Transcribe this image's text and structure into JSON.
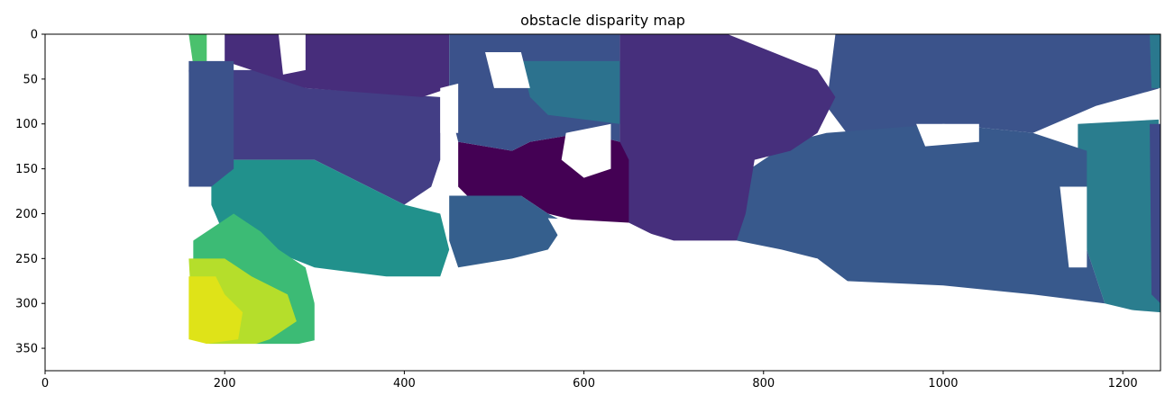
{
  "chart_data": {
    "type": "heatmap",
    "title": "obstacle disparity map",
    "xlabel": "",
    "ylabel": "",
    "xlim": [
      0,
      1242
    ],
    "ylim": [
      375,
      0
    ],
    "x_ticks": [
      0,
      200,
      400,
      600,
      800,
      1000,
      1200
    ],
    "y_ticks": [
      0,
      50,
      100,
      150,
      200,
      250,
      300,
      350
    ],
    "colormap": "viridis",
    "background_color": "#ffffff",
    "grid": false,
    "regions": [
      {
        "name": "far-right-teal",
        "color": "#2a7d8e",
        "points": [
          [
            1150,
            100
          ],
          [
            1242,
            95
          ],
          [
            1242,
            315
          ],
          [
            1180,
            300
          ],
          [
            1160,
            240
          ],
          [
            1150,
            170
          ]
        ]
      },
      {
        "name": "upper-right-blue",
        "color": "#3b538b",
        "points": [
          [
            880,
            0
          ],
          [
            1242,
            0
          ],
          [
            1242,
            60
          ],
          [
            1170,
            80
          ],
          [
            1100,
            110
          ],
          [
            1000,
            100
          ],
          [
            900,
            120
          ],
          [
            870,
            80
          ]
        ]
      },
      {
        "name": "right-mid-blue",
        "color": "#38598c",
        "points": [
          [
            870,
            110
          ],
          [
            1000,
            100
          ],
          [
            1100,
            110
          ],
          [
            1160,
            130
          ],
          [
            1160,
            240
          ],
          [
            1180,
            300
          ],
          [
            1100,
            290
          ],
          [
            1000,
            280
          ],
          [
            890,
            275
          ],
          [
            860,
            250
          ],
          [
            820,
            240
          ],
          [
            770,
            230
          ],
          [
            770,
            160
          ],
          [
            830,
            120
          ]
        ]
      },
      {
        "name": "center-top-purple",
        "color": "#462f7c",
        "points": [
          [
            640,
            0
          ],
          [
            760,
            0
          ],
          [
            860,
            40
          ],
          [
            880,
            70
          ],
          [
            860,
            110
          ],
          [
            830,
            130
          ],
          [
            790,
            140
          ],
          [
            780,
            200
          ],
          [
            770,
            230
          ],
          [
            700,
            230
          ],
          [
            650,
            215
          ],
          [
            640,
            140
          ]
        ]
      },
      {
        "name": "center-dark",
        "color": "#440154",
        "points": [
          [
            460,
            120
          ],
          [
            520,
            130
          ],
          [
            540,
            120
          ],
          [
            600,
            110
          ],
          [
            640,
            120
          ],
          [
            650,
            140
          ],
          [
            650,
            215
          ],
          [
            600,
            210
          ],
          [
            560,
            200
          ],
          [
            530,
            180
          ],
          [
            480,
            190
          ],
          [
            460,
            170
          ]
        ]
      },
      {
        "name": "left-upper-purple",
        "color": "#433e85",
        "points": [
          [
            160,
            40
          ],
          [
            270,
            40
          ],
          [
            290,
            60
          ],
          [
            440,
            70
          ],
          [
            440,
            140
          ],
          [
            430,
            170
          ],
          [
            400,
            190
          ],
          [
            300,
            140
          ],
          [
            200,
            140
          ],
          [
            165,
            150
          ]
        ]
      },
      {
        "name": "top-dark-purple",
        "color": "#472d7b",
        "points": [
          [
            200,
            0
          ],
          [
            450,
            0
          ],
          [
            450,
            60
          ],
          [
            420,
            70
          ],
          [
            290,
            60
          ],
          [
            260,
            50
          ],
          [
            200,
            30
          ]
        ]
      },
      {
        "name": "top-mid-blue",
        "color": "#3b528b",
        "points": [
          [
            450,
            0
          ],
          [
            640,
            0
          ],
          [
            640,
            120
          ],
          [
            600,
            110
          ],
          [
            540,
            120
          ],
          [
            520,
            130
          ],
          [
            460,
            120
          ],
          [
            450,
            80
          ]
        ]
      },
      {
        "name": "top-teal-patch",
        "color": "#2c728e",
        "points": [
          [
            530,
            30
          ],
          [
            640,
            30
          ],
          [
            640,
            100
          ],
          [
            560,
            90
          ],
          [
            540,
            70
          ]
        ]
      },
      {
        "name": "center-lower-blue",
        "color": "#355f8d",
        "points": [
          [
            450,
            180
          ],
          [
            530,
            180
          ],
          [
            560,
            200
          ],
          [
            580,
            210
          ],
          [
            560,
            240
          ],
          [
            520,
            250
          ],
          [
            460,
            260
          ],
          [
            450,
            230
          ]
        ]
      },
      {
        "name": "left-teal-green",
        "color": "#21918c",
        "points": [
          [
            185,
            140
          ],
          [
            300,
            140
          ],
          [
            400,
            190
          ],
          [
            440,
            200
          ],
          [
            450,
            240
          ],
          [
            440,
            270
          ],
          [
            380,
            270
          ],
          [
            300,
            260
          ],
          [
            250,
            240
          ],
          [
            200,
            225
          ],
          [
            185,
            190
          ]
        ]
      },
      {
        "name": "left-green",
        "color": "#3cbb75",
        "points": [
          [
            165,
            230
          ],
          [
            210,
            200
          ],
          [
            240,
            220
          ],
          [
            260,
            240
          ],
          [
            290,
            260
          ],
          [
            300,
            300
          ],
          [
            305,
            340
          ],
          [
            260,
            350
          ],
          [
            230,
            350
          ],
          [
            200,
            330
          ],
          [
            165,
            300
          ]
        ]
      },
      {
        "name": "left-yellow-green",
        "color": "#b5de2b",
        "points": [
          [
            160,
            250
          ],
          [
            200,
            250
          ],
          [
            230,
            270
          ],
          [
            270,
            290
          ],
          [
            280,
            320
          ],
          [
            250,
            340
          ],
          [
            220,
            350
          ],
          [
            200,
            350
          ],
          [
            165,
            340
          ]
        ]
      },
      {
        "name": "left-yellow",
        "color": "#dfe318",
        "points": [
          [
            160,
            270
          ],
          [
            190,
            270
          ],
          [
            200,
            290
          ],
          [
            220,
            310
          ],
          [
            215,
            340
          ],
          [
            180,
            345
          ],
          [
            160,
            340
          ]
        ]
      },
      {
        "name": "top-left-green-strip",
        "color": "#4ac16d",
        "points": [
          [
            160,
            0
          ],
          [
            180,
            0
          ],
          [
            180,
            30
          ],
          [
            165,
            35
          ]
        ]
      },
      {
        "name": "left-strip-blue",
        "color": "#3b528b",
        "points": [
          [
            160,
            30
          ],
          [
            210,
            30
          ],
          [
            210,
            150
          ],
          [
            185,
            170
          ],
          [
            160,
            170
          ]
        ]
      },
      {
        "name": "right-edge-dark",
        "color": "#3e4989",
        "points": [
          [
            1230,
            100
          ],
          [
            1242,
            100
          ],
          [
            1242,
            300
          ],
          [
            1232,
            290
          ]
        ]
      },
      {
        "name": "right-top-teal",
        "color": "#2a788e",
        "points": [
          [
            1230,
            0
          ],
          [
            1242,
            0
          ],
          [
            1242,
            60
          ],
          [
            1232,
            60
          ]
        ]
      }
    ],
    "holes": [
      {
        "name": "hole-bottom-right",
        "points": [
          [
            300,
            300
          ],
          [
            450,
            290
          ],
          [
            600,
            260
          ],
          [
            700,
            240
          ],
          [
            780,
            240
          ],
          [
            860,
            250
          ],
          [
            900,
            280
          ],
          [
            1000,
            285
          ],
          [
            1100,
            295
          ],
          [
            1180,
            305
          ],
          [
            1242,
            310
          ],
          [
            1242,
            375
          ],
          [
            300,
            375
          ]
        ]
      },
      {
        "name": "hole-bottom-left",
        "points": [
          [
            160,
            345
          ],
          [
            300,
            345
          ],
          [
            300,
            375
          ],
          [
            160,
            375
          ]
        ]
      },
      {
        "name": "hole-left-column",
        "points": [
          [
            150,
            170
          ],
          [
            185,
            170
          ],
          [
            185,
            200
          ],
          [
            165,
            230
          ],
          [
            160,
            250
          ],
          [
            150,
            250
          ]
        ]
      },
      {
        "name": "hole-center-top",
        "points": [
          [
            580,
            110
          ],
          [
            630,
            100
          ],
          [
            630,
            150
          ],
          [
            600,
            160
          ],
          [
            575,
            140
          ]
        ]
      },
      {
        "name": "hole-center-mid",
        "points": [
          [
            560,
            205
          ],
          [
            650,
            210
          ],
          [
            690,
            230
          ],
          [
            640,
            240
          ],
          [
            580,
            240
          ]
        ]
      },
      {
        "name": "hole-upper-right",
        "points": [
          [
            970,
            100
          ],
          [
            1040,
            100
          ],
          [
            1040,
            120
          ],
          [
            980,
            125
          ]
        ]
      },
      {
        "name": "hole-right-mid",
        "points": [
          [
            1130,
            170
          ],
          [
            1160,
            170
          ],
          [
            1160,
            260
          ],
          [
            1140,
            260
          ]
        ]
      },
      {
        "name": "hole-top-left",
        "points": [
          [
            260,
            0
          ],
          [
            290,
            0
          ],
          [
            290,
            40
          ],
          [
            265,
            45
          ]
        ]
      },
      {
        "name": "hole-top-mid",
        "points": [
          [
            490,
            20
          ],
          [
            530,
            20
          ],
          [
            540,
            60
          ],
          [
            500,
            60
          ]
        ]
      },
      {
        "name": "hole-top-mid2",
        "points": [
          [
            440,
            60
          ],
          [
            460,
            55
          ],
          [
            460,
            110
          ],
          [
            440,
            110
          ]
        ]
      },
      {
        "name": "hole-top-right",
        "points": [
          [
            1240,
            60
          ],
          [
            1242,
            60
          ],
          [
            1242,
            100
          ],
          [
            1240,
            100
          ]
        ]
      }
    ]
  }
}
